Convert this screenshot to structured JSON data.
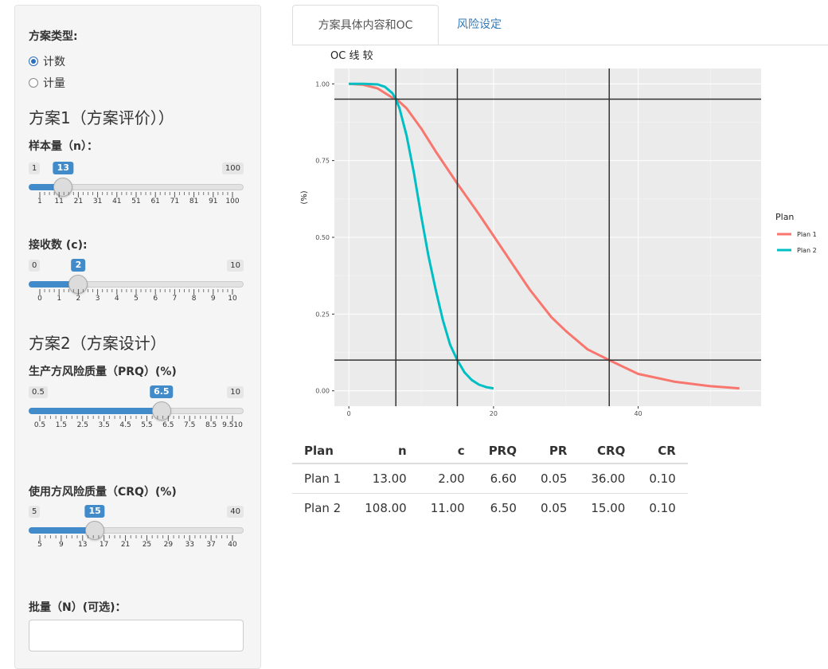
{
  "sidebar": {
    "plan_type_label": "方案类型:",
    "plan_types": [
      {
        "label": "计数",
        "selected": true
      },
      {
        "label": "计量",
        "selected": false
      }
    ],
    "section1_title": "方案1（方案评价））",
    "section2_title": "方案2（方案设计）",
    "sliders": [
      {
        "label": "样本量（n）：",
        "min": "1",
        "max": "100",
        "value": "13",
        "ticks": [
          "1",
          "11",
          "21",
          "31",
          "41",
          "51",
          "61",
          "71",
          "81",
          "91",
          "100"
        ]
      },
      {
        "label": "接收数 (c):",
        "min": "0",
        "max": "10",
        "value": "2",
        "ticks": [
          "0",
          "1",
          "2",
          "3",
          "4",
          "5",
          "6",
          "7",
          "8",
          "9",
          "10"
        ]
      },
      {
        "label": "生产方风险质量（PRQ）(%)",
        "min": "0.5",
        "max": "10",
        "value": "6.5",
        "ticks": [
          "0.5",
          "1.5",
          "2.5",
          "3.5",
          "4.5",
          "5.5",
          "6.5",
          "7.5",
          "8.5",
          "9.510"
        ]
      },
      {
        "label": "使用方风险质量（CRQ）(%)",
        "min": "5",
        "max": "40",
        "value": "15",
        "ticks": [
          "5",
          "9",
          "13",
          "17",
          "21",
          "25",
          "29",
          "33",
          "37",
          "40"
        ]
      }
    ],
    "lot_label": "批量（N）(可选)：",
    "lot_value": ""
  },
  "tabs": [
    {
      "label": "方案具体内容和OC",
      "active": true
    },
    {
      "label": "风险设定",
      "active": false
    }
  ],
  "chart_data": {
    "type": "line",
    "title": "OC  线  较",
    "ylabel": "(%)",
    "xlabel": "",
    "x_ticks": [
      "0",
      "20",
      "40"
    ],
    "y_ticks": [
      "0.00",
      "0.25",
      "0.50",
      "0.75",
      "1.00"
    ],
    "xlim": [
      -2,
      57
    ],
    "ylim": [
      -0.05,
      1.05
    ],
    "legend_title": "Plan",
    "legend_position": "right",
    "series": [
      {
        "name": "Plan 1",
        "color": "#F8766D",
        "x": [
          0,
          2,
          4,
          6,
          6.6,
          8,
          10,
          12,
          15,
          18,
          20,
          22,
          25,
          28,
          30,
          33,
          36,
          40,
          45,
          50,
          54
        ],
        "y": [
          1.0,
          0.997,
          0.985,
          0.955,
          0.95,
          0.92,
          0.855,
          0.78,
          0.675,
          0.575,
          0.505,
          0.435,
          0.33,
          0.24,
          0.195,
          0.135,
          0.1,
          0.055,
          0.03,
          0.015,
          0.008
        ]
      },
      {
        "name": "Plan 2",
        "color": "#00BFC4",
        "x": [
          0,
          2,
          4,
          5,
          6,
          6.5,
          7,
          8,
          9,
          10,
          11,
          12,
          13,
          14,
          15,
          16,
          17,
          18,
          19,
          20
        ],
        "y": [
          1.0,
          1.0,
          0.998,
          0.99,
          0.97,
          0.95,
          0.92,
          0.83,
          0.71,
          0.57,
          0.44,
          0.33,
          0.23,
          0.15,
          0.1,
          0.06,
          0.035,
          0.02,
          0.012,
          0.008
        ]
      }
    ],
    "vlines": [
      6.5,
      15,
      36
    ],
    "hlines": [
      0.95,
      0.1
    ],
    "grid": true
  },
  "table": {
    "headers": [
      "Plan",
      "n",
      "c",
      "PRQ",
      "PR",
      "CRQ",
      "CR"
    ],
    "rows": [
      [
        "Plan 1",
        "13.00",
        "2.00",
        "6.60",
        "0.05",
        "36.00",
        "0.10"
      ],
      [
        "Plan 2",
        "108.00",
        "11.00",
        "6.50",
        "0.05",
        "15.00",
        "0.10"
      ]
    ]
  }
}
